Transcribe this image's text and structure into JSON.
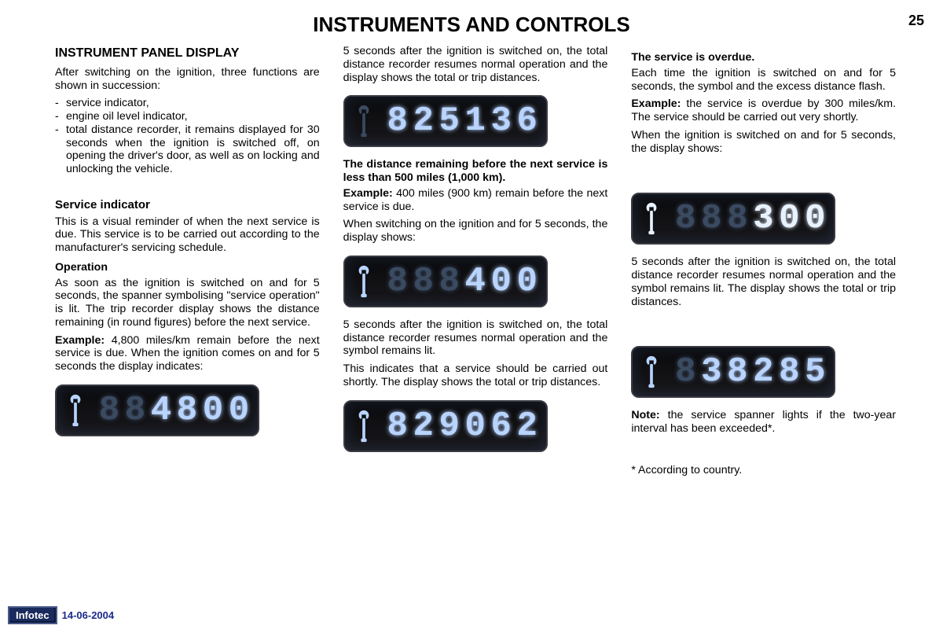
{
  "page_title": "INSTRUMENTS AND CONTROLS",
  "page_number": "25",
  "footer": {
    "logo": "Infotec",
    "date": "14-06-2004"
  },
  "lcd_style": {
    "bg": "#0a0a0c",
    "border": "#3a3a42",
    "dim_color": "#3a4a60",
    "lit_color": "#b8d4ff",
    "hi_color": "#e8f2ff"
  },
  "col1": {
    "h1": "INSTRUMENT PANEL DISPLAY",
    "intro": "After switching on the ignition, three functions are shown in succession:",
    "bullets": [
      "service indicator,",
      "engine oil level indicator,",
      "total distance recorder, it remains displayed for 30 seconds when the ignition is switched off, on opening the driver's door, as well as on locking and unlocking the vehicle."
    ],
    "h2": "Service indicator",
    "p1": "This is a visual reminder of when the next service is due. This service is to be carried out according to the manufacturer's servicing schedule.",
    "sub1": "Operation",
    "p2": "As soon as the ignition is switched on and for 5 seconds, the spanner symbolising \"service operation\" is lit. The trip recorder display shows the distance remaining (in round figures) before the next service.",
    "ex_label": "Example:",
    "ex_text": " 4,800 miles/km remain before the next service is due. When the ignition comes on and for 5 seconds the display indicates:",
    "lcd1": {
      "wrench": "lit",
      "digits": [
        {
          "c": "8",
          "s": "dim"
        },
        {
          "c": "8",
          "s": "dim"
        },
        {
          "c": "4",
          "s": "lit"
        },
        {
          "c": "8",
          "s": "lit"
        },
        {
          "c": "0",
          "s": "lit"
        },
        {
          "c": "0",
          "s": "lit"
        }
      ]
    }
  },
  "col2": {
    "p1": "5 seconds after the ignition is switched on, the total distance recorder resumes normal operation and the display shows the total or trip distances.",
    "lcd1": {
      "wrench": "dim",
      "digits": [
        {
          "c": "8",
          "s": "lit"
        },
        {
          "c": "2",
          "s": "lit"
        },
        {
          "c": "5",
          "s": "lit"
        },
        {
          "c": "1",
          "s": "lit"
        },
        {
          "c": "3",
          "s": "lit"
        },
        {
          "c": "6",
          "s": "lit"
        }
      ]
    },
    "sub1": "The distance remaining before the next service is less than 500 miles (1,000 km).",
    "ex_label": "Example:",
    "ex_text": " 400 miles (900 km) remain before the next service is due.",
    "p2": "When switching on the ignition and for 5 seconds, the display shows:",
    "lcd2": {
      "wrench": "lit",
      "digits": [
        {
          "c": "8",
          "s": "dim"
        },
        {
          "c": "8",
          "s": "dim"
        },
        {
          "c": "8",
          "s": "dim"
        },
        {
          "c": "4",
          "s": "lit"
        },
        {
          "c": "0",
          "s": "lit"
        },
        {
          "c": "0",
          "s": "lit"
        }
      ]
    },
    "p3": "5 seconds after the ignition is switched on, the total distance recorder resumes normal operation and the symbol remains lit.",
    "p4": "This indicates that a service should be carried out shortly. The display shows the total or trip distances.",
    "lcd3": {
      "wrench": "lit",
      "digits": [
        {
          "c": "8",
          "s": "lit"
        },
        {
          "c": "2",
          "s": "lit"
        },
        {
          "c": "9",
          "s": "lit"
        },
        {
          "c": "0",
          "s": "lit"
        },
        {
          "c": "6",
          "s": "lit"
        },
        {
          "c": "2",
          "s": "lit"
        }
      ]
    }
  },
  "col3": {
    "sub1": "The service is overdue.",
    "p1": "Each time the ignition is switched on and for 5 seconds, the symbol and the excess distance flash.",
    "ex_label": "Example:",
    "ex_text": " the service is overdue by 300 miles/km. The service should be carried out very shortly.",
    "p2": "When the ignition is switched on and for 5 seconds, the display shows:",
    "lcd1": {
      "wrench": "hi",
      "digits": [
        {
          "c": "8",
          "s": "dim"
        },
        {
          "c": "8",
          "s": "dim"
        },
        {
          "c": "8",
          "s": "dim"
        },
        {
          "c": "3",
          "s": "hi"
        },
        {
          "c": "0",
          "s": "hi"
        },
        {
          "c": "0",
          "s": "hi"
        }
      ]
    },
    "p3": "5 seconds after the ignition is switched on, the total distance recorder resumes normal operation and the symbol remains lit. The display shows the total or trip distances.",
    "lcd2": {
      "wrench": "lit",
      "digits": [
        {
          "c": "8",
          "s": "dim"
        },
        {
          "c": "3",
          "s": "lit"
        },
        {
          "c": "8",
          "s": "lit"
        },
        {
          "c": "2",
          "s": "lit"
        },
        {
          "c": "8",
          "s": "lit"
        },
        {
          "c": "5",
          "s": "lit"
        }
      ]
    },
    "note_label": "Note:",
    "note_text": " the service spanner lights if the two-year interval has been exceeded*.",
    "footnote": "* According to country."
  }
}
